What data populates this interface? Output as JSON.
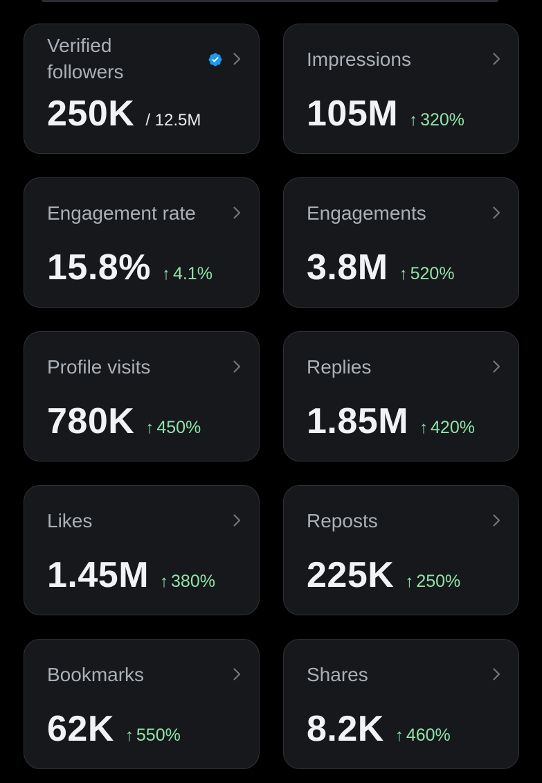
{
  "colors": {
    "background": "#000000",
    "card_background": "#16181c",
    "card_border": "#2f3336",
    "label": "#aab0b6",
    "value": "#f0f2f4",
    "positive_change": "#8fe3a8",
    "verified_badge": "#1d9bf0"
  },
  "icons": {
    "verified": "verified-badge-icon",
    "chevron": "chevron-right-icon",
    "arrow": "arrow-up-icon"
  },
  "cards": [
    {
      "label": "Verified followers",
      "value": "250K",
      "secondary": "/ 12.5M"
    },
    {
      "label": "Impressions",
      "value": "105M",
      "arrow": "↑",
      "change": "320%"
    },
    {
      "label": "Engagement rate",
      "value": "15.8%",
      "arrow": "↑",
      "change": "4.1%"
    },
    {
      "label": "Engagements",
      "value": "3.8M",
      "arrow": "↑",
      "change": "520%"
    },
    {
      "label": "Profile visits",
      "value": "780K",
      "arrow": "↑",
      "change": "450%"
    },
    {
      "label": "Replies",
      "value": "1.85M",
      "arrow": "↑",
      "change": "420%"
    },
    {
      "label": "Likes",
      "value": "1.45M",
      "arrow": "↑",
      "change": "380%"
    },
    {
      "label": "Reposts",
      "value": "225K",
      "arrow": "↑",
      "change": "250%"
    },
    {
      "label": "Bookmarks",
      "value": "62K",
      "arrow": "↑",
      "change": "550%"
    },
    {
      "label": "Shares",
      "value": "8.2K",
      "arrow": "↑",
      "change": "460%"
    }
  ]
}
